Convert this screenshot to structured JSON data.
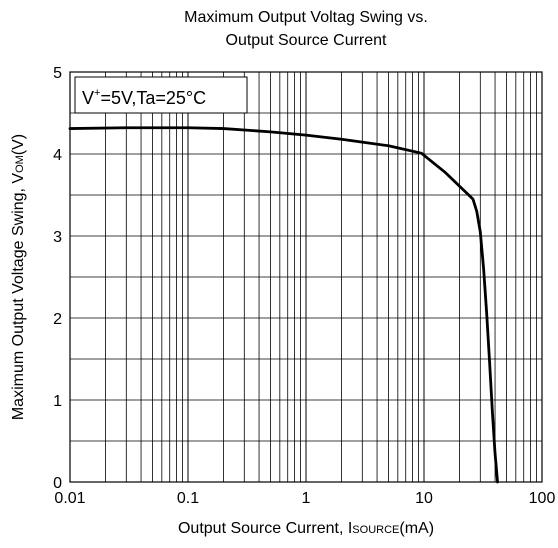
{
  "chart_data": {
    "type": "line",
    "title_line1": "Maximum Output Voltag Swing vs.",
    "title_line2": "Output Source Current",
    "xlabel": "Output Source Current, ",
    "xlabel_main": "I",
    "xlabel_sub": "SOURCE",
    "xlabel_unit": "(mA)",
    "ylabel": "Maximum Output Voltage Swing, ",
    "ylabel_main": "V",
    "ylabel_sub": "OM",
    "ylabel_unit": "(V)",
    "x_scale": "log",
    "xlim": [
      0.01,
      100
    ],
    "ylim": [
      0,
      5
    ],
    "x_ticks": [
      0.01,
      0.1,
      1,
      10,
      100
    ],
    "x_tick_labels": [
      "0.01",
      "0.1",
      "1",
      "10",
      "100"
    ],
    "y_ticks": [
      0,
      1,
      2,
      3,
      4,
      5
    ],
    "y_tick_labels": [
      "0",
      "1",
      "2",
      "3",
      "4",
      "5"
    ],
    "grid": true,
    "annotation": {
      "v": "V",
      "sup": "+",
      "rest": "=5V,Ta=25°C"
    },
    "series": [
      {
        "color": "#000000",
        "x": [
          0.01,
          0.03,
          0.07,
          0.1,
          0.2,
          0.5,
          1,
          2,
          5,
          9.5,
          15,
          22,
          26,
          28,
          30,
          32,
          34,
          36,
          38,
          40,
          42
        ],
        "y": [
          4.31,
          4.32,
          4.32,
          4.32,
          4.31,
          4.27,
          4.23,
          4.18,
          4.1,
          4.01,
          3.78,
          3.55,
          3.45,
          3.3,
          3.05,
          2.6,
          2.05,
          1.45,
          0.85,
          0.35,
          0.0
        ]
      }
    ]
  }
}
